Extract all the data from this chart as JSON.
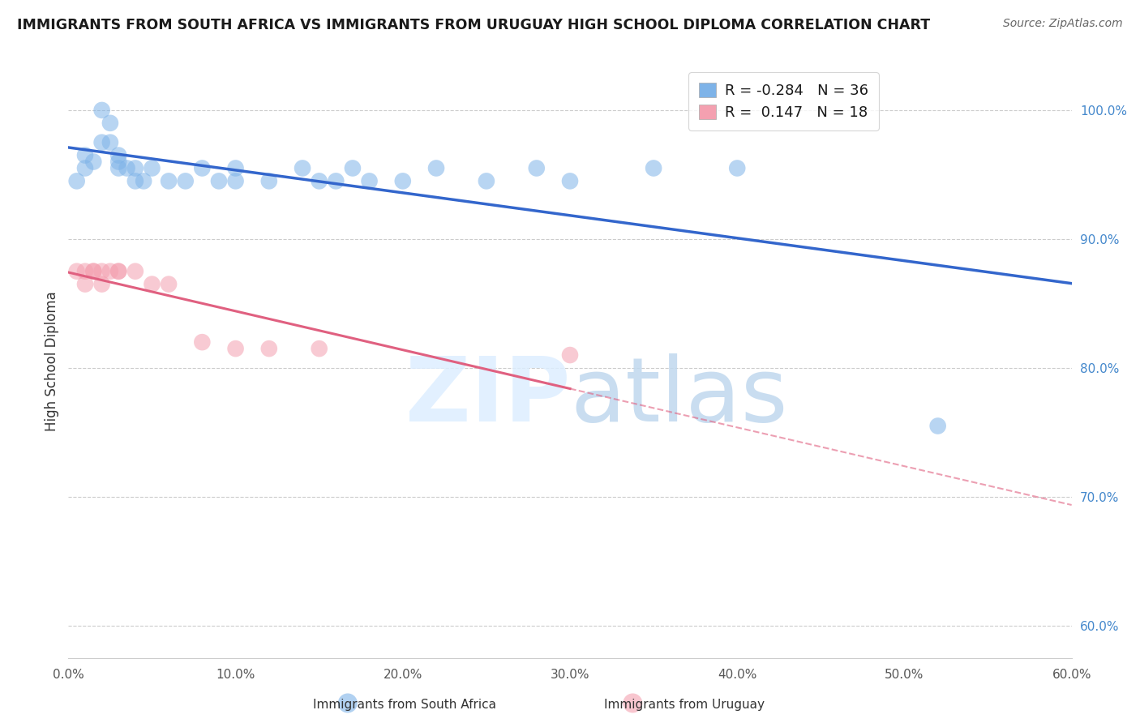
{
  "title": "IMMIGRANTS FROM SOUTH AFRICA VS IMMIGRANTS FROM URUGUAY HIGH SCHOOL DIPLOMA CORRELATION CHART",
  "source": "Source: ZipAtlas.com",
  "ylabel": "High School Diploma",
  "x_tick_labels": [
    "0.0%",
    "10.0%",
    "20.0%",
    "30.0%",
    "40.0%",
    "50.0%",
    "60.0%"
  ],
  "x_tick_values": [
    0.0,
    0.1,
    0.2,
    0.3,
    0.4,
    0.5,
    0.6
  ],
  "y_tick_labels": [
    "60.0%",
    "70.0%",
    "80.0%",
    "90.0%",
    "100.0%"
  ],
  "y_tick_values": [
    0.6,
    0.7,
    0.8,
    0.9,
    1.0
  ],
  "xlim": [
    0.0,
    0.6
  ],
  "ylim": [
    0.575,
    1.035
  ],
  "south_africa_R": -0.284,
  "south_africa_N": 36,
  "uruguay_R": 0.147,
  "uruguay_N": 18,
  "legend_label_sa": "Immigrants from South Africa",
  "legend_label_uy": "Immigrants from Uruguay",
  "color_sa": "#7EB3E8",
  "color_uy": "#F4A0B0",
  "color_sa_line": "#3366CC",
  "color_uy_line": "#E06080",
  "south_africa_x": [
    0.005,
    0.01,
    0.01,
    0.015,
    0.02,
    0.02,
    0.025,
    0.025,
    0.03,
    0.03,
    0.03,
    0.035,
    0.04,
    0.04,
    0.045,
    0.05,
    0.06,
    0.07,
    0.08,
    0.09,
    0.1,
    0.1,
    0.12,
    0.14,
    0.15,
    0.16,
    0.17,
    0.18,
    0.2,
    0.22,
    0.25,
    0.28,
    0.3,
    0.35,
    0.4,
    0.52
  ],
  "south_africa_y": [
    0.945,
    0.965,
    0.955,
    0.96,
    0.975,
    1.0,
    0.99,
    0.975,
    0.965,
    0.96,
    0.955,
    0.955,
    0.955,
    0.945,
    0.945,
    0.955,
    0.945,
    0.945,
    0.955,
    0.945,
    0.955,
    0.945,
    0.945,
    0.955,
    0.945,
    0.945,
    0.955,
    0.945,
    0.945,
    0.955,
    0.945,
    0.955,
    0.945,
    0.955,
    0.955,
    0.755
  ],
  "uruguay_x": [
    0.005,
    0.01,
    0.01,
    0.015,
    0.015,
    0.02,
    0.02,
    0.025,
    0.03,
    0.03,
    0.04,
    0.05,
    0.06,
    0.08,
    0.1,
    0.12,
    0.15,
    0.3
  ],
  "uruguay_y": [
    0.875,
    0.875,
    0.865,
    0.875,
    0.875,
    0.875,
    0.865,
    0.875,
    0.875,
    0.875,
    0.875,
    0.865,
    0.865,
    0.82,
    0.815,
    0.815,
    0.815,
    0.81
  ]
}
